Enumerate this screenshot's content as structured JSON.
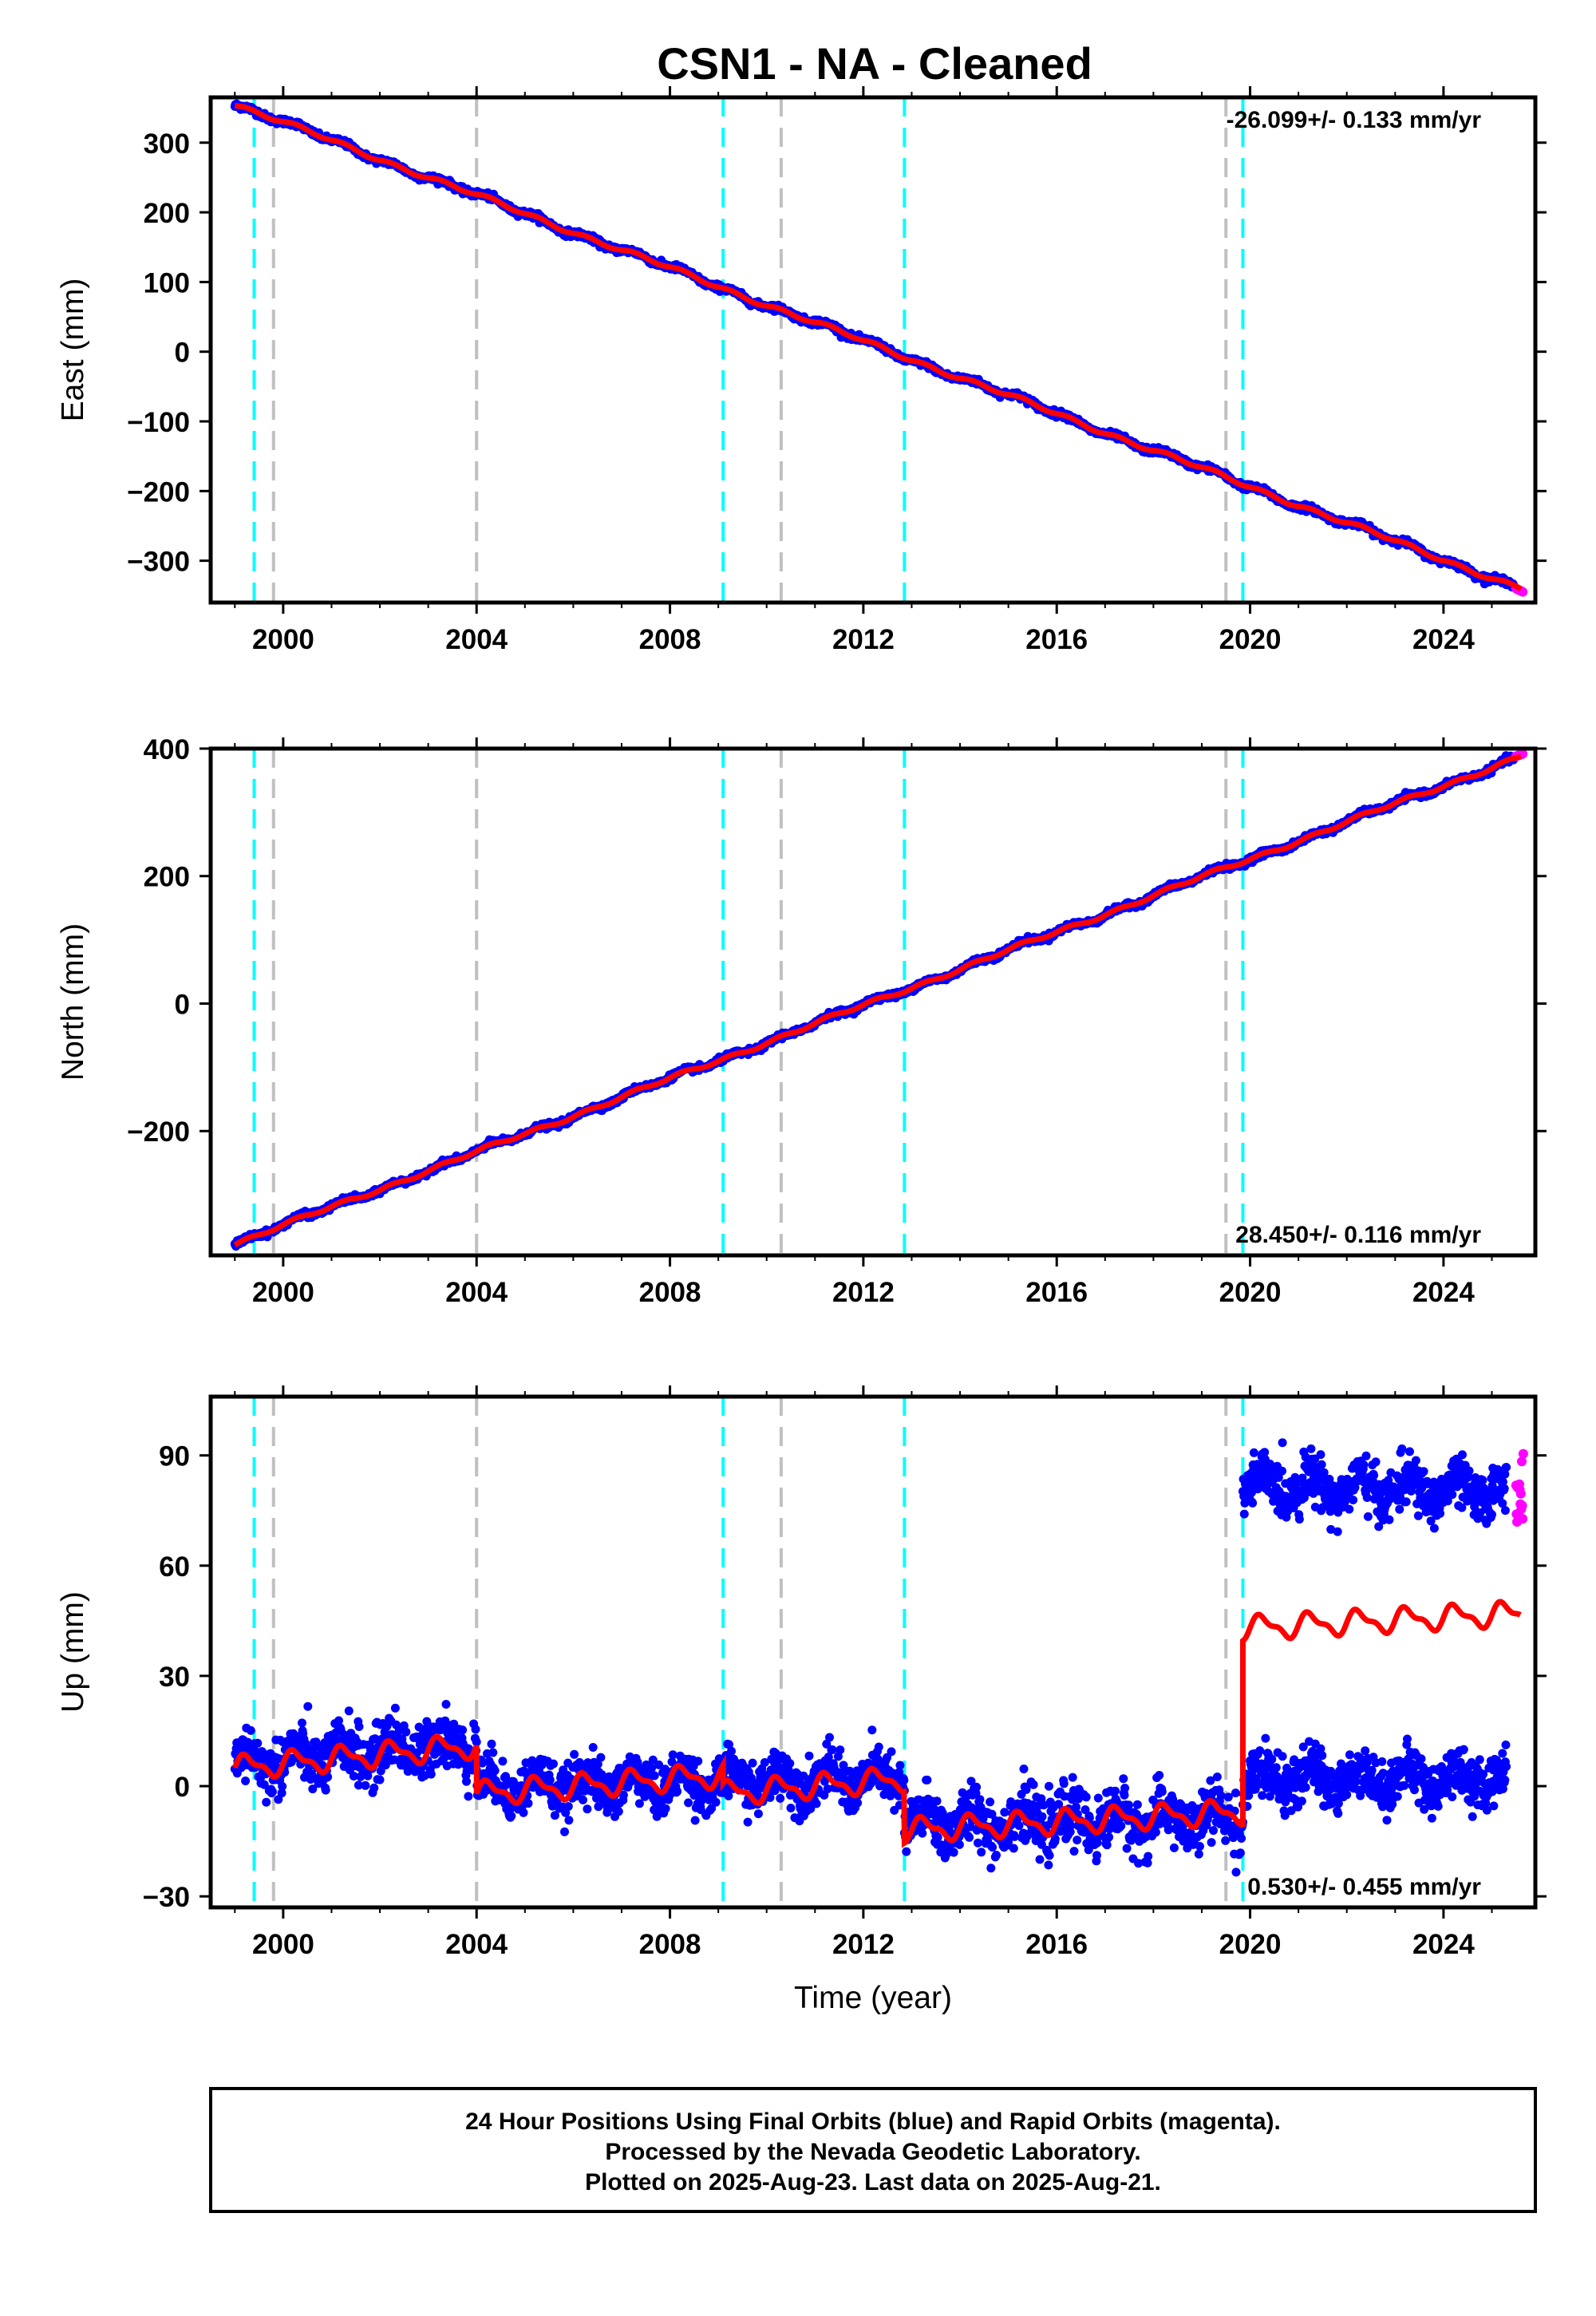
{
  "title": "CSN1  - NA - Cleaned",
  "footer": {
    "lines": [
      "24 Hour Positions Using Final Orbits (blue) and Rapid Orbits (magenta).",
      "Processed by the Nevada Geodetic Laboratory.",
      "Plotted on 2025-Aug-23. Last data on 2025-Aug-21."
    ]
  },
  "colors": {
    "final_orbits": "#0000ff",
    "rapid_orbits": "#ff00ff",
    "model": "#ff0000",
    "antenna_change": "#00ffff",
    "equipment_change": "#c0c0c0"
  },
  "chart_data": [
    {
      "type": "scatter",
      "panel": "east",
      "ylabel": "East (mm)",
      "xlabel": "",
      "xlim": [
        1998.5,
        2025.9
      ],
      "ylim": [
        -360,
        365
      ],
      "xticks": [
        2000,
        2004,
        2008,
        2012,
        2016,
        2020,
        2024
      ],
      "xtick_labels": [
        "2000",
        "2004",
        "2008",
        "2012",
        "2016",
        "2020",
        "2024"
      ],
      "yticks": [
        -300,
        -200,
        -100,
        0,
        100,
        200,
        300
      ],
      "ytick_labels": [
        "−300",
        "−200",
        "−100",
        "0",
        "100",
        "200",
        "300"
      ],
      "rate_text": "-26.099+/- 0.133 mm/yr",
      "rate_position": "top-right",
      "velocity_mm_per_yr": -26.099,
      "model_line": {
        "x": [
          1999.0,
          2025.6
        ],
        "y": [
          355,
          -340
        ]
      },
      "final_orbits_x_range": [
        1999.0,
        2025.45
      ],
      "rapid_orbits": {
        "x": [
          2025.5,
          2025.65
        ],
        "y": [
          -340,
          -345
        ]
      },
      "antenna_changes": [
        1999.4,
        2009.1,
        2012.85,
        2019.85
      ],
      "equipment_changes": [
        1999.8,
        2004.0,
        2010.3,
        2019.5
      ]
    },
    {
      "type": "scatter",
      "panel": "north",
      "ylabel": "North (mm)",
      "xlabel": "",
      "xlim": [
        1998.5,
        2025.9
      ],
      "ylim": [
        -395,
        400
      ],
      "xticks": [
        2000,
        2004,
        2008,
        2012,
        2016,
        2020,
        2024
      ],
      "xtick_labels": [
        "2000",
        "2004",
        "2008",
        "2012",
        "2016",
        "2020",
        "2024"
      ],
      "yticks": [
        -200,
        0,
        200,
        400
      ],
      "ytick_labels": [
        "−200",
        "0",
        "200",
        "400"
      ],
      "rate_text": "28.450+/- 0.116 mm/yr",
      "rate_position": "bottom-right",
      "velocity_mm_per_yr": 28.45,
      "model_line": {
        "x": [
          1999.0,
          2025.6
        ],
        "y": [
          -377,
          388
        ]
      },
      "final_orbits_x_range": [
        1999.0,
        2025.45
      ],
      "rapid_orbits": {
        "x": [
          2025.5,
          2025.65
        ],
        "y": [
          388,
          392
        ]
      },
      "antenna_changes": [
        1999.4,
        2009.1,
        2012.85,
        2019.85
      ],
      "equipment_changes": [
        1999.8,
        2004.0,
        2010.3,
        2019.5
      ]
    },
    {
      "type": "scatter",
      "panel": "up",
      "ylabel": "Up (mm)",
      "xlabel": "Time (year)",
      "xlim": [
        1998.5,
        2025.9
      ],
      "ylim": [
        -33,
        106
      ],
      "xticks": [
        2000,
        2004,
        2008,
        2012,
        2016,
        2020,
        2024
      ],
      "xtick_labels": [
        "2000",
        "2004",
        "2008",
        "2012",
        "2016",
        "2020",
        "2024"
      ],
      "yticks": [
        -30,
        0,
        30,
        60,
        90
      ],
      "ytick_labels": [
        "−30",
        "0",
        "30",
        "60",
        "90"
      ],
      "rate_text": "0.530+/- 0.455 mm/yr",
      "rate_position": "bottom-right",
      "velocity_mm_per_yr": 0.53,
      "model_segments": [
        {
          "x": [
            1999.0,
            2004.0
          ],
          "offset_start": 5,
          "offset_end": 11
        },
        {
          "x": [
            2004.0,
            2009.1
          ],
          "offset_start": -2,
          "offset_end": 3
        },
        {
          "x": [
            2009.1,
            2012.85
          ],
          "offset_start": -2,
          "offset_end": 2
        },
        {
          "x": [
            2012.85,
            2019.85
          ],
          "offset_start": -12,
          "offset_end": -7
        },
        {
          "x": [
            2019.85,
            2025.6
          ],
          "offset_start": 43,
          "offset_end": 47
        }
      ],
      "seasonal_amplitude_mm": 3.5,
      "point_clusters": [
        {
          "x": [
            1999.0,
            2004.0
          ],
          "y_mean_start": 6,
          "y_mean_end": 12,
          "y_spread": 7
        },
        {
          "x": [
            2004.0,
            2012.85
          ],
          "y_mean_start": 0,
          "y_mean_end": 2,
          "y_spread": 6
        },
        {
          "x": [
            2012.85,
            2019.85
          ],
          "y_mean_start": -10,
          "y_mean_end": -9,
          "y_spread": 7
        },
        {
          "x": [
            2019.85,
            2025.3
          ],
          "y_mean_start": 82,
          "y_mean_end": 80,
          "y_spread": 6
        },
        {
          "x": [
            2019.85,
            2025.3
          ],
          "y_mean_start": 2,
          "y_mean_end": 2,
          "y_spread": 6
        }
      ],
      "rapid_orbits": {
        "x": [
          2025.5,
          2025.65
        ],
        "y": [
          71,
          92
        ]
      },
      "antenna_changes": [
        1999.4,
        2009.1,
        2012.85,
        2019.85
      ],
      "equipment_changes": [
        1999.8,
        2004.0,
        2010.3,
        2019.5
      ]
    }
  ]
}
